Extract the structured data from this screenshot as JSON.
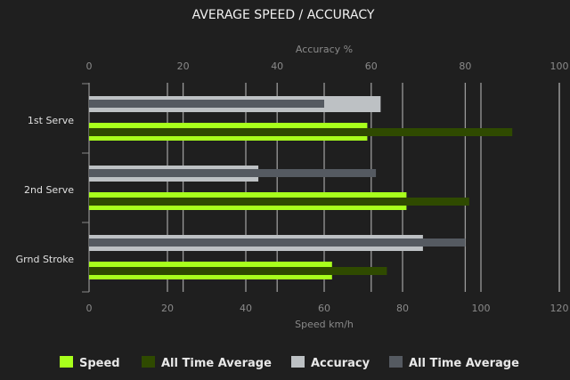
{
  "chart_data": {
    "type": "bar",
    "orientation": "horizontal",
    "title": "AVERAGE SPEED / ACCURACY",
    "categories": [
      "1st Serve",
      "2nd Serve",
      "Grnd Stroke"
    ],
    "top_axis": {
      "label": "Accuracy %",
      "range": [
        0,
        100
      ],
      "ticks": [
        0,
        20,
        40,
        60,
        80,
        100
      ]
    },
    "bottom_axis": {
      "label": "Speed km/h",
      "range": [
        0,
        120
      ],
      "ticks": [
        0,
        20,
        40,
        60,
        80,
        100,
        120
      ]
    },
    "grid": true,
    "legend_position": "bottom",
    "series": [
      {
        "name": "Speed",
        "axis": "bottom",
        "color": "#a8ff1c",
        "values": [
          71,
          81,
          62
        ]
      },
      {
        "name": "All Time Average",
        "axis": "bottom",
        "color": "#2f4a00",
        "values": [
          108,
          97,
          76
        ]
      },
      {
        "name": "Accuracy",
        "axis": "top",
        "color": "#bdc1c4",
        "values": [
          62,
          36,
          71
        ]
      },
      {
        "name": "All Time Average",
        "axis": "top",
        "color": "#555a61",
        "values": [
          50,
          61,
          80
        ]
      }
    ]
  }
}
